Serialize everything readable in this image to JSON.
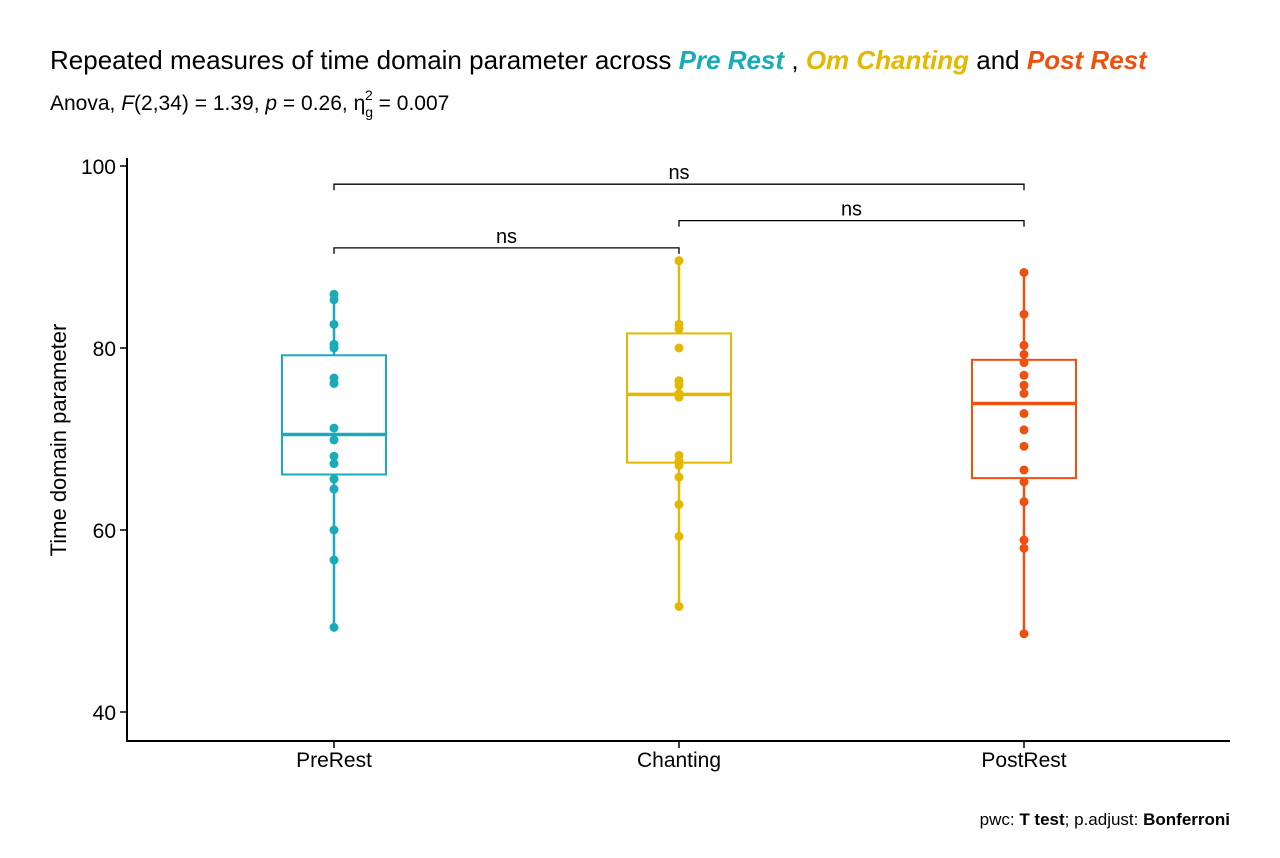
{
  "title": {
    "prefix": "Repeated measures of time domain parameter across ",
    "group1": "Pre Rest",
    "sep1": " , ",
    "group2": "Om Chanting",
    "sep2": " and ",
    "group3": "Post Rest"
  },
  "subtitle": {
    "p1": "Anova, ",
    "f": "F",
    "p2": "(2,34) = 1.39, ",
    "p": "p",
    "p3": " = 0.26, ",
    "eta": "η",
    "sub": "g",
    "sup": "2",
    "p4": " = 0.007"
  },
  "caption": {
    "pwc_label": "pwc: ",
    "pwc_value": "T test",
    "sep": "; p.adjust: ",
    "adjust_value": "Bonferroni"
  },
  "chart_data": {
    "type": "box",
    "ylabel": "Time domain parameter",
    "xlabel": "",
    "ylim": [
      38,
      103
    ],
    "yticks": [
      40,
      60,
      80,
      100
    ],
    "grid": false,
    "categories": [
      "PreRest",
      "Chanting",
      "PostRest"
    ],
    "colors": [
      "#1AABBB",
      "#E5B800",
      "#F0500F"
    ],
    "series": [
      {
        "category": "PreRest",
        "min": 49.3,
        "q1": 66.1,
        "median": 70.5,
        "q3": 79.2,
        "max": 85.9,
        "points": [
          85.9,
          85.3,
          82.6,
          80.4,
          80.0,
          76.7,
          76.1,
          71.2,
          69.9,
          68.1,
          67.3,
          65.6,
          64.5,
          60.0,
          56.7,
          49.3
        ]
      },
      {
        "category": "Chanting",
        "min": 51.6,
        "q1": 67.4,
        "median": 74.9,
        "q3": 81.6,
        "max": 89.6,
        "points": [
          89.6,
          82.6,
          82.1,
          80.0,
          76.4,
          75.9,
          75.0,
          74.6,
          68.2,
          67.6,
          67.1,
          65.8,
          62.8,
          59.3,
          51.6
        ]
      },
      {
        "category": "PostRest",
        "min": 48.6,
        "q1": 65.7,
        "median": 73.9,
        "q3": 78.7,
        "max": 88.3,
        "points": [
          88.3,
          83.7,
          80.3,
          79.3,
          78.4,
          77.0,
          75.9,
          75.0,
          72.8,
          71.0,
          69.2,
          66.6,
          65.3,
          63.1,
          58.9,
          58.0,
          48.6
        ]
      }
    ],
    "comparisons": [
      {
        "from": "PreRest",
        "to": "Chanting",
        "label": "ns",
        "y": 91
      },
      {
        "from": "Chanting",
        "to": "PostRest",
        "label": "ns",
        "y": 94
      },
      {
        "from": "PreRest",
        "to": "PostRest",
        "label": "ns",
        "y": 98
      }
    ]
  }
}
